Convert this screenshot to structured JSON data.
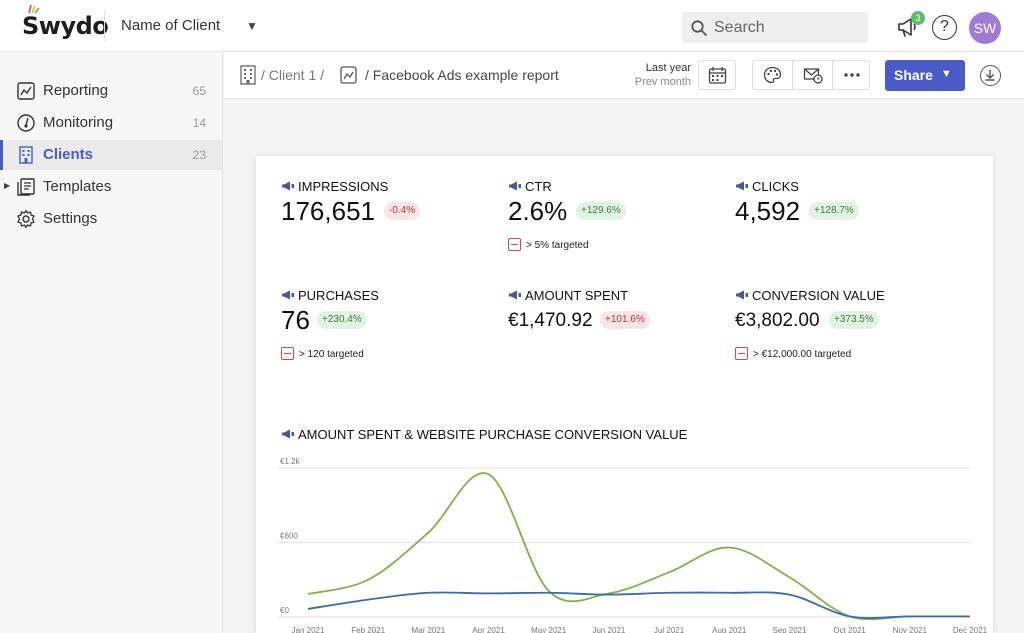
{
  "app": {
    "logo_text": "Swydo",
    "client_selector": "Name of Client"
  },
  "search": {
    "placeholder": "Search"
  },
  "notifications": {
    "count": "3"
  },
  "help_label": "?",
  "user": {
    "initials": "SW"
  },
  "sidebar": {
    "items": [
      {
        "label": "Reporting",
        "count": "65",
        "icon": "reporting-icon"
      },
      {
        "label": "Monitoring",
        "count": "14",
        "icon": "monitoring-icon"
      },
      {
        "label": "Clients",
        "count": "23",
        "icon": "clients-icon",
        "active": true
      },
      {
        "label": "Templates",
        "count": "",
        "icon": "templates-icon"
      },
      {
        "label": "Settings",
        "count": "",
        "icon": "settings-icon"
      }
    ]
  },
  "breadcrumb": {
    "client": "/ Client 1 /",
    "report": "/ Facebook Ads example report"
  },
  "date_range": {
    "main": "Last year",
    "compare": "Prev month"
  },
  "toolbar": {
    "share_label": "Share"
  },
  "kpis": [
    {
      "title": "IMPRESSIONS",
      "value": "176,651",
      "change": "-0.4%",
      "trend": "neg",
      "target": ""
    },
    {
      "title": "CTR",
      "value": "2.6%",
      "change": "+129.6%",
      "trend": "pos",
      "target": "> 5% targeted"
    },
    {
      "title": "CLICKS",
      "value": "4,592",
      "change": "+128.7%",
      "trend": "pos",
      "target": ""
    },
    {
      "title": "PURCHASES",
      "value": "76",
      "change": "+230.4%",
      "trend": "pos",
      "target": "> 120 targeted"
    },
    {
      "title": "AMOUNT SPENT",
      "value": "€1,470.92",
      "change": "+101.6%",
      "trend": "neg",
      "target": ""
    },
    {
      "title": "CONVERSION VALUE",
      "value": "€3,802.00",
      "change": "+373.5%",
      "trend": "pos",
      "target": "> €12,000.00 targeted"
    }
  ],
  "colors": {
    "accent": "#4a5bc8",
    "series_green": "#7fb24a",
    "series_blue": "#3d6aa8"
  },
  "chart_data": {
    "type": "line",
    "title": "AMOUNT SPENT & WEBSITE PURCHASE CONVERSION VALUE",
    "categories": [
      "Jan 2021",
      "Feb 2021",
      "Mar 2021",
      "Apr 2021",
      "May 2021",
      "Jun 2021",
      "Jul 2021",
      "Aug 2021",
      "Sep 2021",
      "Oct 2021",
      "Nov 2021",
      "Dec 2021"
    ],
    "series": [
      {
        "values": [
          185,
          300,
          680,
          1150,
          210,
          190,
          360,
          560,
          320,
          5,
          5,
          5
        ],
        "color": "#7fb24a"
      },
      {
        "values": [
          65,
          140,
          195,
          190,
          195,
          180,
          195,
          195,
          180,
          5,
          5,
          5
        ],
        "color": "#3d6aa8"
      }
    ],
    "yticks": [
      {
        "value": 0,
        "label": "€0"
      },
      {
        "value": 600,
        "label": "€600"
      },
      {
        "value": 1200,
        "label": "€1.2k"
      }
    ],
    "ylim": [
      0,
      1200
    ],
    "grid": true
  }
}
